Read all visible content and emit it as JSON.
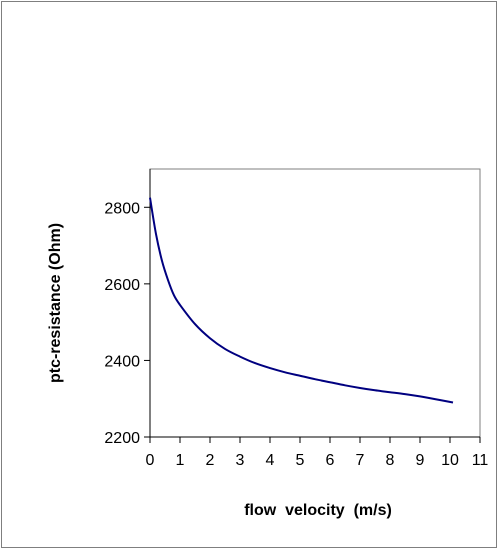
{
  "chart_data": {
    "type": "line",
    "title": "",
    "xlabel": "flow  velocity  (m/s)",
    "ylabel": "ptc-resistance (Ohm)",
    "xlim": [
      0,
      11
    ],
    "ylim": [
      2200,
      2900
    ],
    "xticks": [
      0,
      1,
      2,
      3,
      4,
      5,
      6,
      7,
      8,
      9,
      10,
      11
    ],
    "yticks": [
      2200,
      2400,
      2600,
      2800
    ],
    "grid": false,
    "legend": "none",
    "line_color": "#000080",
    "series": [
      {
        "x": [
          0,
          0.2,
          0.4,
          0.6,
          0.8,
          1,
          1.5,
          2,
          2.5,
          3,
          3.5,
          4,
          4.5,
          5,
          5.5,
          6,
          6.5,
          7,
          7.5,
          8,
          8.5,
          9,
          9.5,
          10.1
        ],
        "values": [
          2825,
          2730,
          2660,
          2610,
          2570,
          2545,
          2495,
          2458,
          2430,
          2410,
          2393,
          2380,
          2369,
          2360,
          2351,
          2343,
          2335,
          2328,
          2322,
          2317,
          2312,
          2306,
          2299,
          2290
        ]
      }
    ]
  }
}
